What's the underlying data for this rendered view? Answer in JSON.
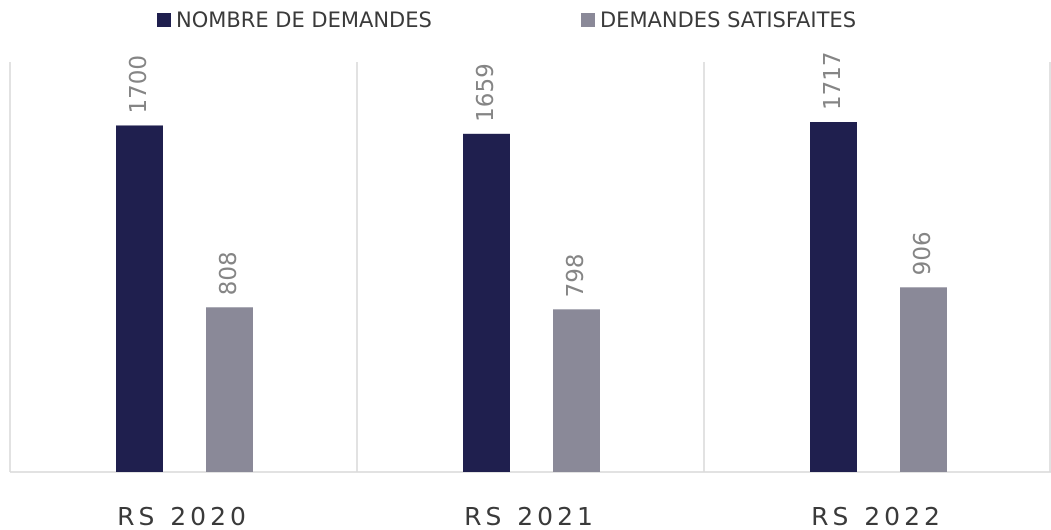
{
  "chart_data": {
    "type": "bar",
    "categories": [
      "RS 2020",
      "RS 2021",
      "RS 2022"
    ],
    "series": [
      {
        "name": "NOMBRE DE DEMANDES",
        "color": "#1f1f4e",
        "values": [
          1700,
          1659,
          1717
        ]
      },
      {
        "name": "DEMANDES SATISFAITES",
        "color": "#8a8998",
        "values": [
          808,
          798,
          906
        ]
      }
    ],
    "legend": "top"
  }
}
